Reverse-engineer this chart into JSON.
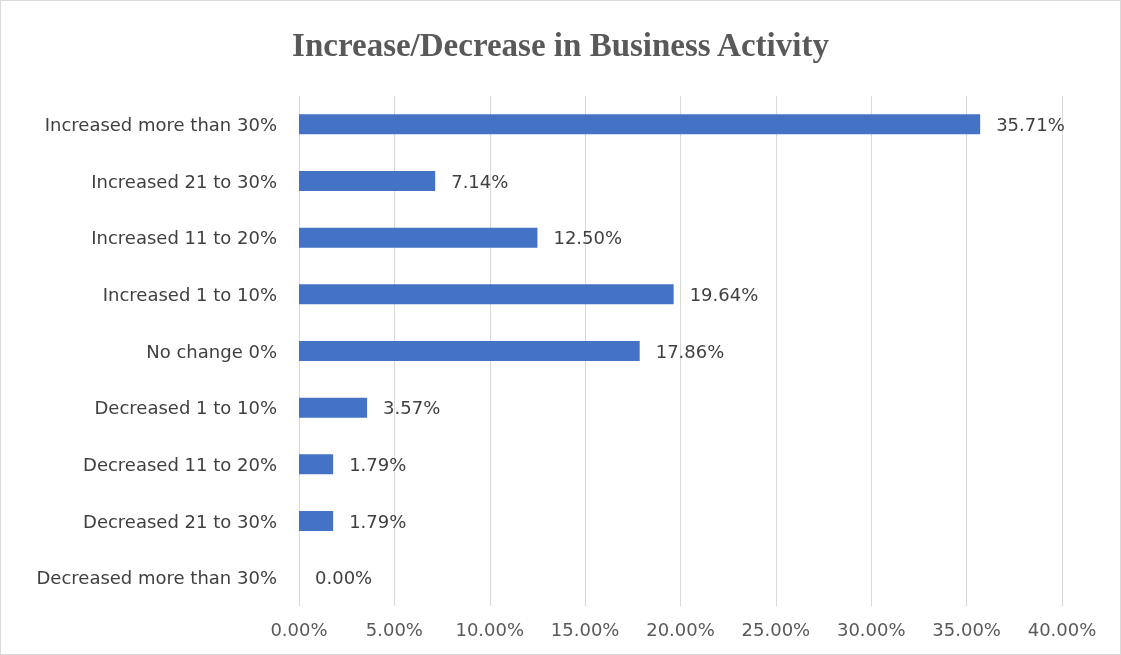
{
  "chart_data": {
    "type": "bar",
    "orientation": "horizontal",
    "title": "Increase/Decrease in Business Activity",
    "categories": [
      "Increased more than 30%",
      "Increased 21 to 30%",
      "Increased 11 to 20%",
      "Increased 1 to 10%",
      "No change 0%",
      "Decreased 1 to 10%",
      "Decreased 11 to 20%",
      "Decreased 21 to 30%",
      "Decreased more than 30%"
    ],
    "values": [
      35.71,
      7.14,
      12.5,
      19.64,
      17.86,
      3.57,
      1.79,
      1.79,
      0
    ],
    "value_labels": [
      "35.71%",
      "7.14%",
      "12.50%",
      "19.64%",
      "17.86%",
      "3.57%",
      "1.79%",
      "1.79%",
      "0.00%"
    ],
    "color": "#4472c4",
    "xlim": [
      0,
      40
    ],
    "xticks": [
      {
        "value": 0,
        "label": "0.00%"
      },
      {
        "value": 5,
        "label": "5.00%"
      },
      {
        "value": 10,
        "label": "10.00%"
      },
      {
        "value": 15,
        "label": "15.00%"
      },
      {
        "value": 20,
        "label": "20.00%"
      },
      {
        "value": 25,
        "label": "25.00%"
      },
      {
        "value": 30,
        "label": "30.00%"
      },
      {
        "value": 35,
        "label": "35.00%"
      },
      {
        "value": 40,
        "label": "40.00%"
      }
    ],
    "grid": "x"
  }
}
